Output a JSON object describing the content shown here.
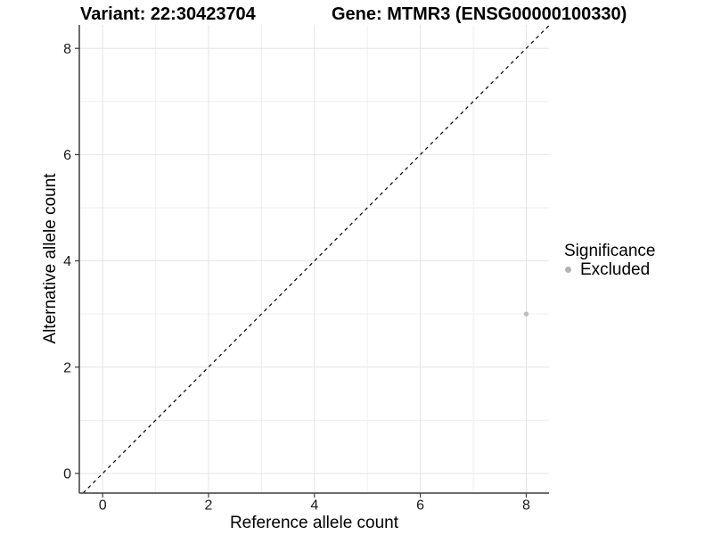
{
  "title_left": "Variant: 22:30423704",
  "title_right": "Gene: MTMR3 (ENSG00000100330)",
  "legend": {
    "title": "Significance",
    "items": [
      {
        "label": "Excluded",
        "color": "#b3b3b3"
      }
    ]
  },
  "colors": {
    "point": "#bdbdbd",
    "grid_major": "#e4e4e4",
    "grid_minor": "#efefef",
    "axis": "#3c3c3c",
    "tick": "#3c3c3c",
    "tick_label": "#1a1a1a",
    "identity_line": "#000000",
    "background": "#ffffff"
  },
  "chart_data": {
    "type": "scatter",
    "title": "Variant: 22:30423704 — Gene: MTMR3 (ENSG00000100330)",
    "xlabel": "Reference allele count",
    "ylabel": "Alternative allele count",
    "x_ticks": [
      0,
      2,
      4,
      6,
      8
    ],
    "y_ticks": [
      0,
      2,
      4,
      6,
      8
    ],
    "xlim": [
      -0.44,
      8.43
    ],
    "ylim": [
      -0.37,
      8.44
    ],
    "grid": "major at even values, minor at odd values",
    "legend_position": "right",
    "series": [
      {
        "name": "Excluded",
        "color": "#bdbdbd",
        "points": [
          {
            "x": 8,
            "y": 3
          }
        ]
      }
    ],
    "reference_line": {
      "kind": "identity y=x",
      "style": "dashed",
      "color": "#000000"
    }
  }
}
